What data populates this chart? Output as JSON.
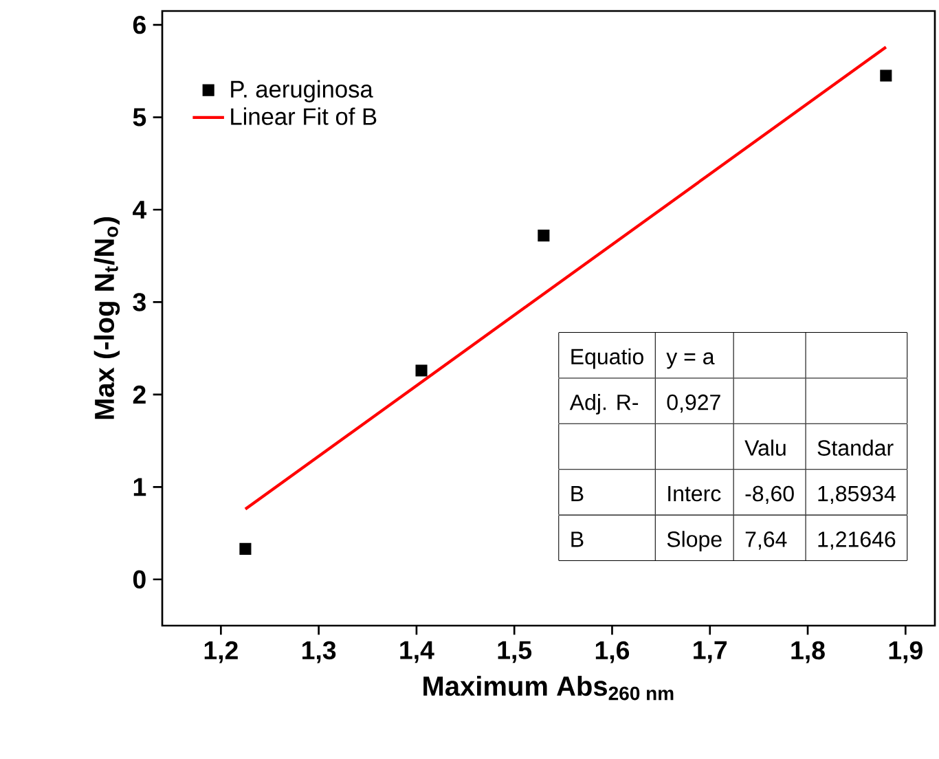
{
  "chart_data": {
    "type": "scatter",
    "xlabel": "Maximum Abs$_{260 nm}$",
    "ylabel": "Max (-log N$_{t}$/N$_{o}$)",
    "xlim": [
      1.14,
      1.93
    ],
    "ylim": [
      -0.5,
      6.15
    ],
    "xticks": [
      {
        "value": 1.2,
        "label": "1,2"
      },
      {
        "value": 1.3,
        "label": "1,3"
      },
      {
        "value": 1.4,
        "label": "1,4"
      },
      {
        "value": 1.5,
        "label": "1,5"
      },
      {
        "value": 1.6,
        "label": "1,6"
      },
      {
        "value": 1.7,
        "label": "1,7"
      },
      {
        "value": 1.8,
        "label": "1,8"
      },
      {
        "value": 1.9,
        "label": "1,9"
      }
    ],
    "yticks": [
      0,
      1,
      2,
      3,
      4,
      5,
      6
    ],
    "legend": "top left",
    "series": [
      {
        "name": "P. aeruginosa",
        "type": "scatter",
        "marker": "square",
        "color": "#000000",
        "x": [
          1.225,
          1.405,
          1.53,
          1.88
        ],
        "values": [
          0.33,
          2.26,
          3.72,
          5.45
        ]
      },
      {
        "name": "Linear Fit of B",
        "type": "line",
        "marker": "none",
        "color": "#ff0000",
        "x": [
          1.225,
          1.88
        ],
        "values": [
          0.76,
          5.76
        ]
      }
    ],
    "annotations": [
      "Equatio",
      "y = a",
      "Adj. R-",
      "0,927",
      "Valu",
      "Standar",
      "B",
      "Interc",
      "-8,60",
      "1,85934",
      "B",
      "Slope",
      "7,64",
      "1,21646"
    ]
  }
}
